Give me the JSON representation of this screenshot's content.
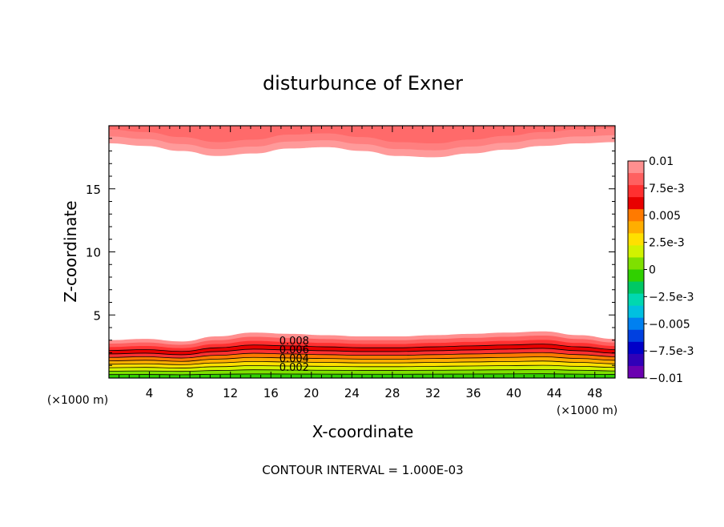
{
  "chart_data": {
    "type": "contour",
    "title": "disturbunce of Exner",
    "xlabel": "X-coordinate",
    "ylabel": "Z-coordinate",
    "x_unit": "(×1000 m)",
    "y_unit": "(×1000 m)",
    "footer": "CONTOUR INTERVAL = 1.000E-03",
    "xlim": [
      0,
      50
    ],
    "ylim": [
      0,
      20
    ],
    "x_ticks": [
      "4",
      "8",
      "12",
      "16",
      "20",
      "24",
      "28",
      "32",
      "36",
      "40",
      "44",
      "48"
    ],
    "y_ticks": [
      "5",
      "10",
      "15"
    ],
    "contour_labels": [
      "0.008",
      "0.006",
      "0.004",
      "0.002"
    ],
    "colorbar": {
      "range": [
        -0.01,
        0.01
      ],
      "labels": [
        "0.01",
        "7.5e-3",
        "0.005",
        "2.5e-3",
        "0",
        "−2.5e-3",
        "−0.005",
        "−7.5e-3",
        "−0.01"
      ],
      "colors": [
        "#ff8f8f",
        "#ff6060",
        "#ff3030",
        "#e80000",
        "#ff7a00",
        "#ffae00",
        "#ffe000",
        "#d2f200",
        "#7fe000",
        "#30d000",
        "#00c864",
        "#00d8b0",
        "#00c0e0",
        "#0080f0",
        "#0040e0",
        "#0000c8",
        "#3000b8",
        "#6a00b0"
      ]
    },
    "bottom_layer_top_km": [
      3.0,
      3.1,
      2.9,
      3.3,
      3.6,
      3.5,
      3.4,
      3.3,
      3.3,
      3.4,
      3.5,
      3.6,
      3.7,
      3.4,
      3.1
    ],
    "top_layer_bottom_km": [
      18.6,
      18.4,
      18.0,
      17.6,
      17.8,
      18.2,
      18.3,
      18.0,
      17.6,
      17.5,
      17.8,
      18.1,
      18.4,
      18.6,
      18.7
    ]
  }
}
